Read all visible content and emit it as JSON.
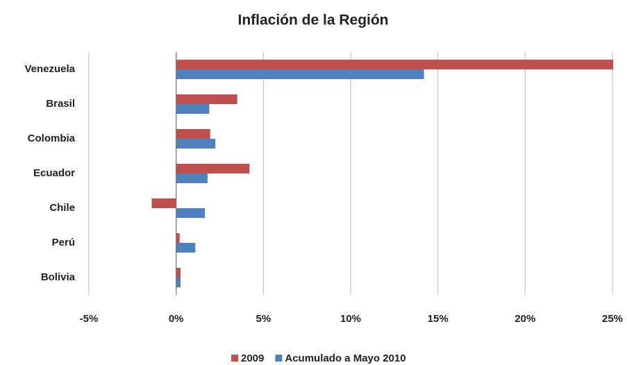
{
  "chart_data": {
    "type": "barh",
    "title": "Inflación de la Región",
    "categories": [
      "Venezuela",
      "Brasil",
      "Colombia",
      "Ecuador",
      "Chile",
      "Perú",
      "Bolivia"
    ],
    "series": [
      {
        "name": "2009",
        "color": "#c0504d",
        "values": [
          25.1,
          3.5,
          1.95,
          4.2,
          -1.4,
          0.2,
          0.25
        ]
      },
      {
        "name": "Acumulado a Mayo 2010",
        "color": "#4f81bd",
        "values": [
          14.2,
          1.9,
          2.25,
          1.8,
          1.65,
          1.1,
          0.25
        ]
      }
    ],
    "xlim": [
      -5,
      25
    ],
    "xticks": [
      {
        "value": -5,
        "label": "-5%"
      },
      {
        "value": 0,
        "label": "0%"
      },
      {
        "value": 5,
        "label": "5%"
      },
      {
        "value": 10,
        "label": "10%"
      },
      {
        "value": 15,
        "label": "15%"
      },
      {
        "value": 20,
        "label": "20%"
      },
      {
        "value": 25,
        "label": "25%"
      }
    ],
    "grid": true,
    "legend": "bottom"
  }
}
